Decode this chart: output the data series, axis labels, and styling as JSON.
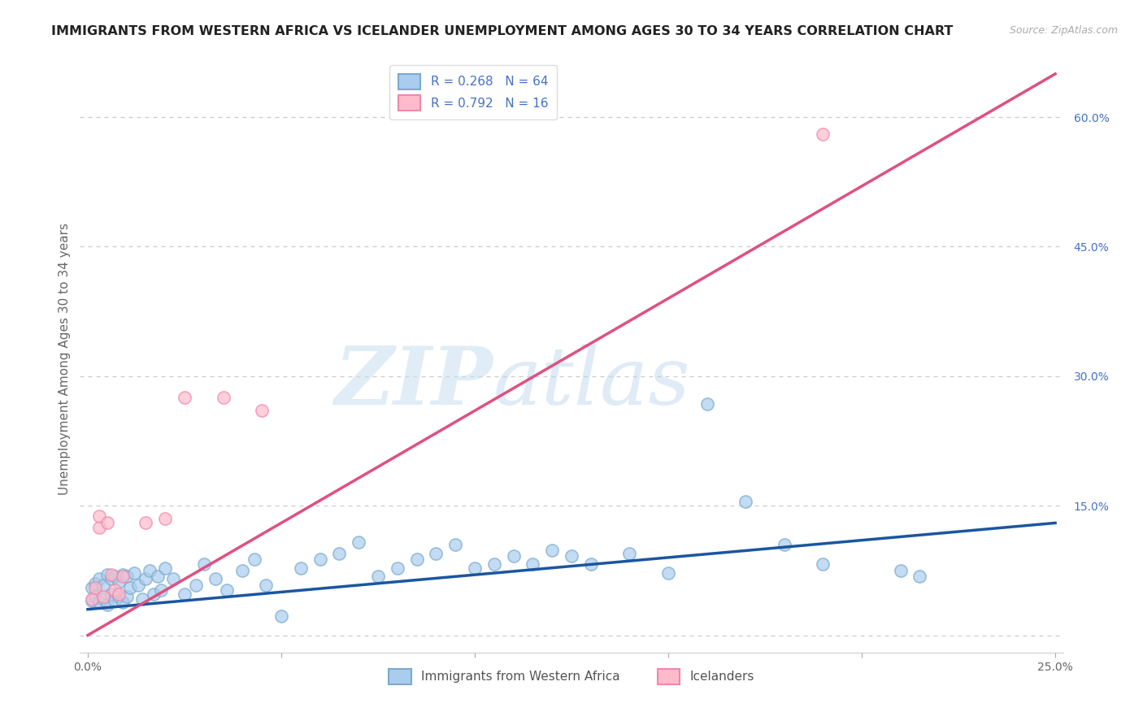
{
  "title": "IMMIGRANTS FROM WESTERN AFRICA VS ICELANDER UNEMPLOYMENT AMONG AGES 30 TO 34 YEARS CORRELATION CHART",
  "source": "Source: ZipAtlas.com",
  "ylabel": "Unemployment Among Ages 30 to 34 years",
  "xlim": [
    -0.002,
    0.252
  ],
  "ylim": [
    -0.02,
    0.66
  ],
  "xticks": [
    0.0,
    0.05,
    0.1,
    0.15,
    0.2,
    0.25
  ],
  "xticklabels": [
    "0.0%",
    "",
    "",
    "",
    "",
    "25.0%"
  ],
  "yticks_right": [
    0.0,
    0.15,
    0.3,
    0.45,
    0.6
  ],
  "ytick_right_labels": [
    "",
    "15.0%",
    "30.0%",
    "45.0%",
    "60.0%"
  ],
  "blue_color": "#aaccee",
  "blue_edge_color": "#7aabcc",
  "blue_line_color": "#1a56a0",
  "pink_color": "#ffbbcc",
  "pink_edge_color": "#ee88aa",
  "pink_line_color": "#e05080",
  "legend_label_blue": "Immigrants from Western Africa",
  "legend_label_pink": "Icelanders",
  "watermark_zip": "ZIP",
  "watermark_atlas": "atlas",
  "blue_scatter_x": [
    0.001,
    0.001,
    0.002,
    0.002,
    0.003,
    0.003,
    0.004,
    0.004,
    0.005,
    0.005,
    0.006,
    0.006,
    0.007,
    0.007,
    0.008,
    0.008,
    0.009,
    0.009,
    0.01,
    0.01,
    0.011,
    0.012,
    0.013,
    0.014,
    0.015,
    0.016,
    0.017,
    0.018,
    0.019,
    0.02,
    0.022,
    0.025,
    0.028,
    0.03,
    0.033,
    0.036,
    0.04,
    0.043,
    0.046,
    0.05,
    0.055,
    0.06,
    0.065,
    0.07,
    0.075,
    0.08,
    0.085,
    0.09,
    0.095,
    0.1,
    0.105,
    0.11,
    0.115,
    0.12,
    0.125,
    0.13,
    0.14,
    0.15,
    0.16,
    0.17,
    0.18,
    0.19,
    0.21,
    0.215
  ],
  "blue_scatter_y": [
    0.04,
    0.055,
    0.045,
    0.06,
    0.038,
    0.065,
    0.042,
    0.058,
    0.035,
    0.07,
    0.048,
    0.065,
    0.04,
    0.068,
    0.045,
    0.062,
    0.038,
    0.07,
    0.045,
    0.068,
    0.055,
    0.072,
    0.058,
    0.042,
    0.065,
    0.075,
    0.048,
    0.068,
    0.052,
    0.078,
    0.065,
    0.048,
    0.058,
    0.082,
    0.065,
    0.052,
    0.075,
    0.088,
    0.058,
    0.022,
    0.078,
    0.088,
    0.095,
    0.108,
    0.068,
    0.078,
    0.088,
    0.095,
    0.105,
    0.078,
    0.082,
    0.092,
    0.082,
    0.098,
    0.092,
    0.082,
    0.095,
    0.072,
    0.268,
    0.155,
    0.105,
    0.082,
    0.075,
    0.068
  ],
  "pink_scatter_x": [
    0.001,
    0.002,
    0.003,
    0.003,
    0.004,
    0.005,
    0.006,
    0.007,
    0.008,
    0.009,
    0.015,
    0.02,
    0.025,
    0.035,
    0.045,
    0.19
  ],
  "pink_scatter_y": [
    0.042,
    0.055,
    0.125,
    0.138,
    0.045,
    0.13,
    0.07,
    0.052,
    0.048,
    0.068,
    0.13,
    0.135,
    0.275,
    0.275,
    0.26,
    0.58
  ],
  "blue_line_x": [
    0.0,
    0.25
  ],
  "blue_line_y": [
    0.03,
    0.13
  ],
  "pink_line_x": [
    0.0,
    0.25
  ],
  "pink_line_y": [
    0.0,
    0.65
  ],
  "bg_color": "#ffffff",
  "grid_color": "#cccccc",
  "title_fontsize": 11.5,
  "axis_label_fontsize": 11,
  "tick_fontsize": 10,
  "legend_color": "#4472c4"
}
